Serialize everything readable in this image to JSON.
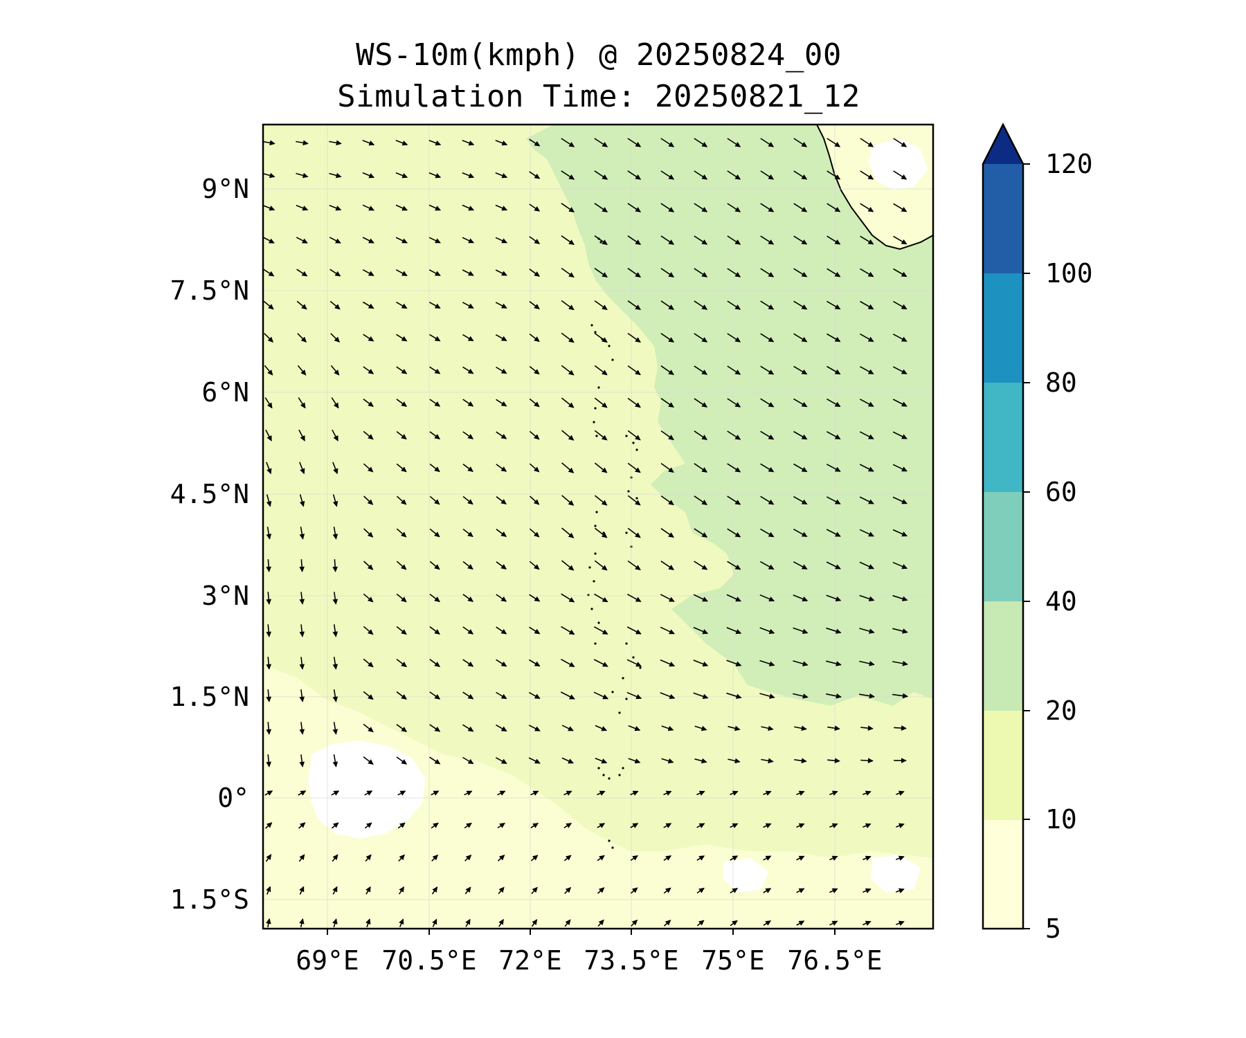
{
  "title": {
    "line1": "WS-10m(kmph) @ 20250824_00",
    "line2": "Simulation Time: 20250821_12"
  },
  "map": {
    "lat_ticks": [
      "9°N",
      "7.5°N",
      "6°N",
      "4.5°N",
      "3°N",
      "1.5°N",
      "0°",
      "1.5°S"
    ],
    "lon_ticks": [
      "69°E",
      "70.5°E",
      "72°E",
      "73.5°E",
      "75°E",
      "76.5°E"
    ],
    "lon_range": [
      68,
      77.9
    ],
    "lat_range": [
      -1.9,
      10
    ]
  },
  "colorbar": {
    "levels": [
      "5",
      "10",
      "20",
      "40",
      "60",
      "80",
      "100",
      "120"
    ],
    "colors": [
      "#ffffd9",
      "#edf8b1",
      "#c7e9b4",
      "#7fcdbb",
      "#41b6c4",
      "#1d91c0",
      "#225ea8",
      "#0c2c84"
    ],
    "extend_color": "#081d58",
    "extend": "max"
  },
  "field_colors": {
    "calm": "#ffffff",
    "below_10": "#fafed2",
    "10_to_20": "#f0fac0",
    "20_to_40": "#d2eeb8"
  },
  "vectors": {
    "description_units": "arrows show 10m wind direction",
    "color": "#000000"
  }
}
